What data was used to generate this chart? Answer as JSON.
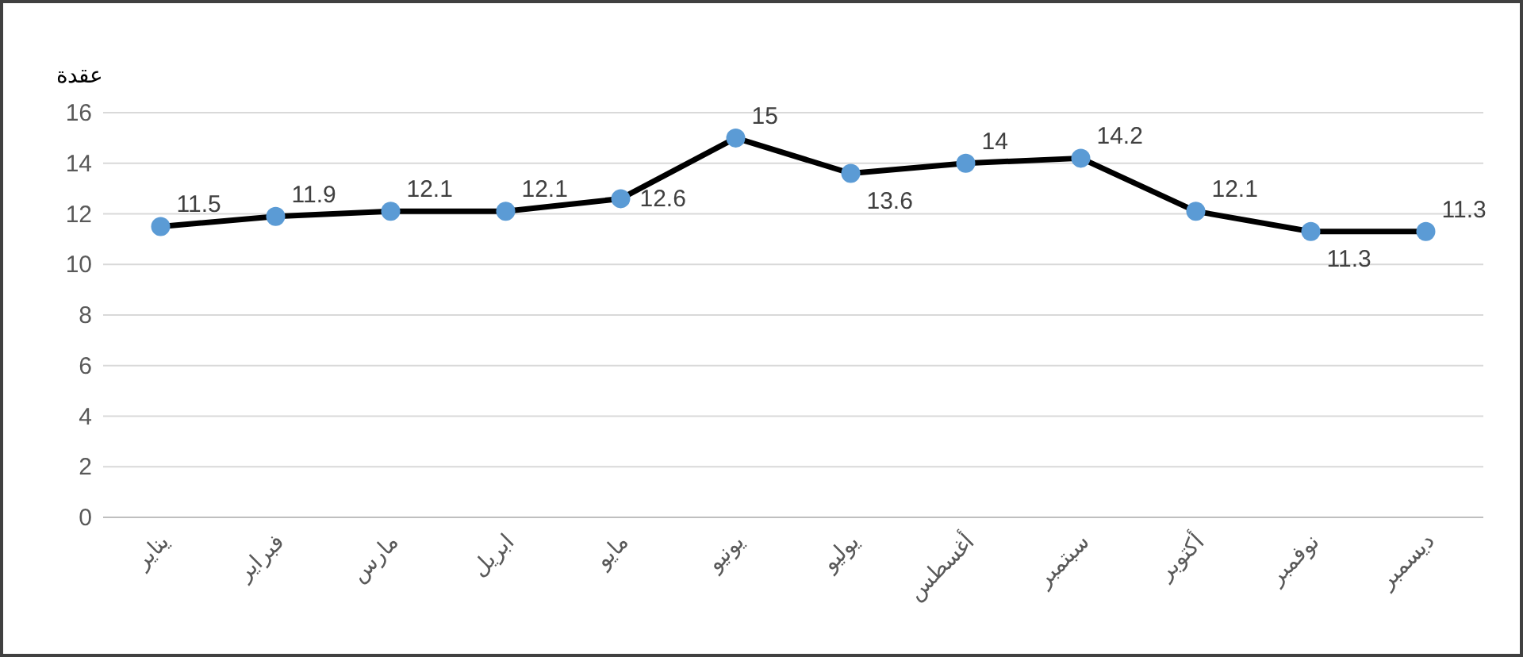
{
  "chart_data": {
    "type": "line",
    "ylabel": "عقدة",
    "categories": [
      "يناير",
      "فبراير",
      "مارس",
      "ابريل",
      "مايو",
      "يونيو",
      "يوليو",
      "أغسطس",
      "سبتمبر",
      "أكتوبر",
      "نوفمبر",
      "ديسمبر"
    ],
    "series": [
      {
        "color": "#000000",
        "colors": [
          "#5b9bd5",
          "#5b9bd5",
          "#5b9bd5",
          "#5b9bd5",
          "#5b9bd5",
          "#5b9bd5",
          "#5b9bd5",
          "#5b9bd5",
          "#5b9bd5",
          "#5b9bd5",
          "#5b9bd5",
          "#5b9bd5"
        ],
        "values": [
          11.5,
          11.9,
          12.1,
          12.1,
          12.6,
          15,
          13.6,
          14,
          14.2,
          12.1,
          11.3,
          11.3
        ]
      }
    ],
    "ylim": [
      0,
      16
    ],
    "yticks": [
      0,
      2,
      4,
      6,
      8,
      10,
      12,
      14,
      16
    ],
    "grid": "y",
    "marker": "circle",
    "line_style": "solid",
    "data_labels": true
  }
}
